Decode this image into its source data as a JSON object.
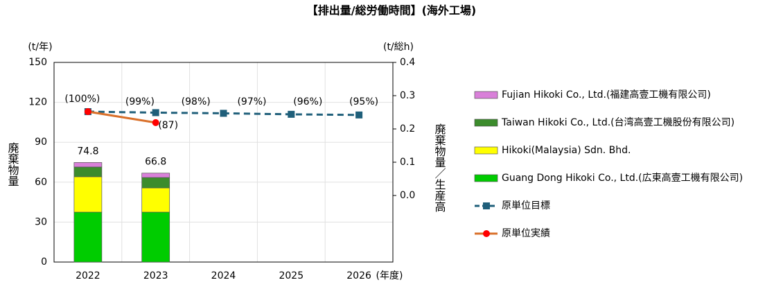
{
  "chart_data": {
    "type": "bar_line",
    "title": "【排出量/総労働時間】(海外工場)",
    "y_unit": "(t/年)",
    "y2_unit": "(t/総h)",
    "x_unit": "(年度)",
    "ylabel": "廃棄物量",
    "y2label": "廃棄物量／生産高",
    "categories": [
      "2022",
      "2023",
      "2024",
      "2025",
      "2026"
    ],
    "ylim": [
      0,
      150
    ],
    "yticks": [
      0,
      30,
      60,
      90,
      120,
      150
    ],
    "y2lim": [
      -0.2,
      0.4
    ],
    "y2ticks": [
      {
        "value": 0,
        "label": "0.0"
      },
      0.1,
      0.2,
      0.3,
      0.4
    ],
    "grid": true,
    "totals": [
      74.8,
      66.8,
      null,
      null,
      null
    ],
    "series": [
      {
        "name": "Guang Dong Hikoki Co., Ltd.(広東高壹工機有限公司)",
        "color": "#00cc00",
        "values": [
          37.5,
          37.5,
          null,
          null,
          null
        ]
      },
      {
        "name": "Hikoki(Malaysia) Sdn. Bhd.",
        "color": "#ffff00",
        "values": [
          26.6,
          18.2,
          null,
          null,
          null
        ]
      },
      {
        "name": "Taiwan Hikoki Co., Ltd.(台湾高壹工機股份有限公司)",
        "color": "#3c8c2c",
        "values": [
          7.3,
          7.8,
          null,
          null,
          null
        ]
      },
      {
        "name": "Fujian Hikoki Co., Ltd.(福建高壹工機有限公司)",
        "color": "#d980d9",
        "values": [
          3.4,
          3.3,
          null,
          null,
          null
        ]
      },
      {
        "name": "原単位目標",
        "color": "#1f5f7a",
        "axis": "y2",
        "line": "dashed",
        "marker": "square",
        "values": [
          0.252,
          0.249,
          0.247,
          0.244,
          0.242
        ],
        "labels": [
          "(99%)",
          "(98%)",
          "(97%)",
          "(96%)",
          "(95%)"
        ]
      },
      {
        "name": "原単位実績",
        "color": "#d9702a",
        "marker_color": "#ff0000",
        "axis": "y2",
        "line": "solid",
        "marker": "circle",
        "values": [
          0.252,
          0.219,
          null,
          null,
          null
        ],
        "labels": [
          "(100%)",
          "(87)",
          null,
          null,
          null
        ]
      }
    ]
  }
}
